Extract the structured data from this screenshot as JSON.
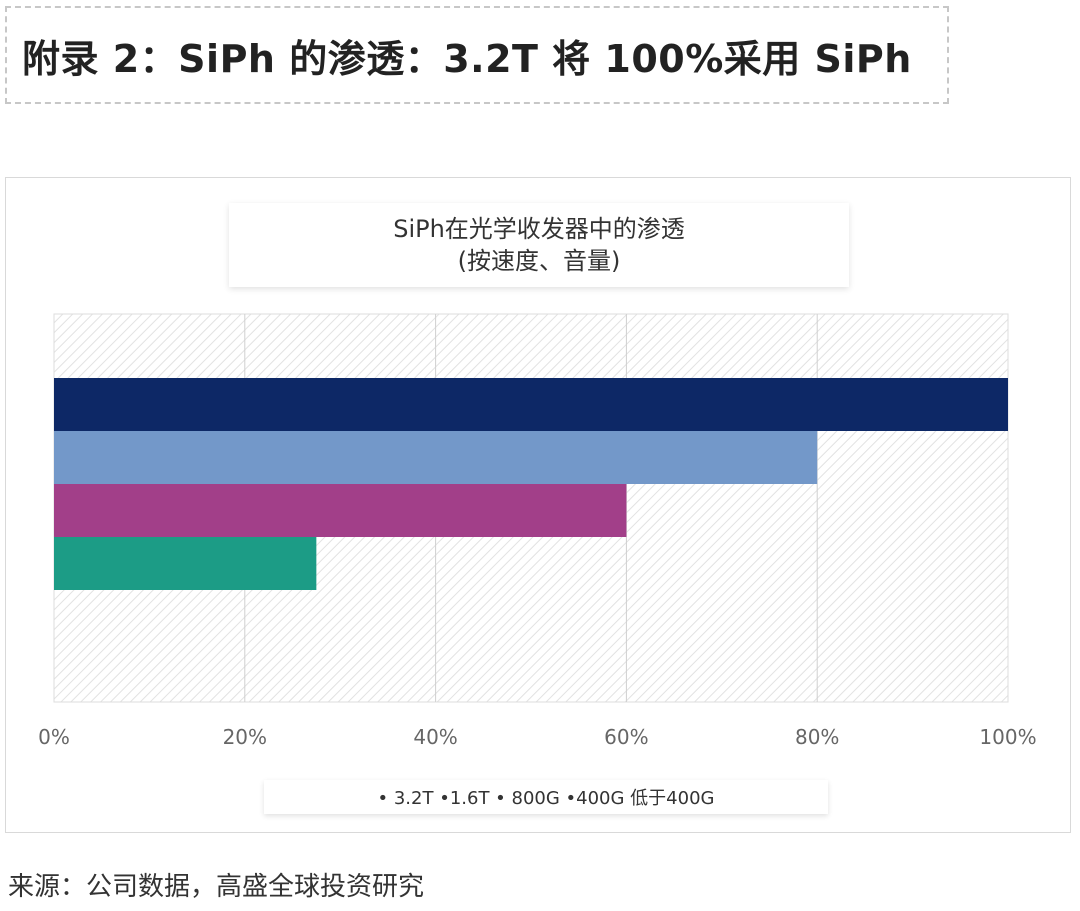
{
  "header": {
    "title": "附录 2：SiPh 的渗透：3.2T 将 100%采用 SiPh"
  },
  "chart_data": {
    "type": "bar",
    "orientation": "horizontal",
    "title_line1": "SiPh在光学收发器中的渗透",
    "title_line2": "(按速度、音量)",
    "categories": [
      "3.2T",
      "1.6T",
      "800G",
      "400G"
    ],
    "values": [
      100,
      80,
      60,
      27.5
    ],
    "colors": [
      "#0d2866",
      "#7398c9",
      "#a23f89",
      "#1c9c86"
    ],
    "x_ticks": [
      "0%",
      "20%",
      "40%",
      "60%",
      "80%",
      "100%"
    ],
    "xlim": [
      0,
      100
    ],
    "grid": true,
    "legend_position": "bottom",
    "legend_text": "• 3.2T •1.6T • 800G •400G 低于400G"
  },
  "footer": {
    "source": "来源：公司数据，高盛全球投资研究"
  }
}
